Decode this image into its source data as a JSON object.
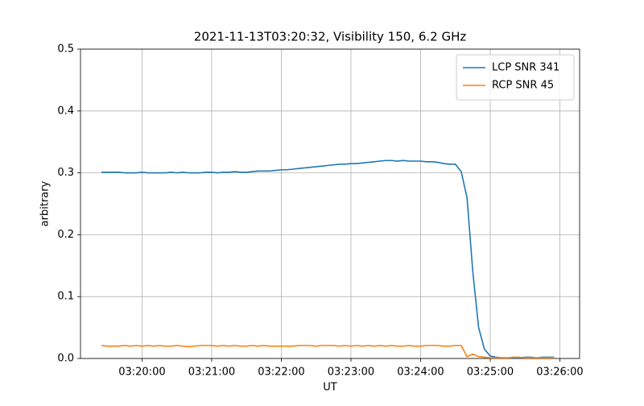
{
  "chart_data": {
    "type": "line",
    "title": "2021-11-13T03:20:32, Visibility 150, 6.2 GHz",
    "xlabel": "UT",
    "ylabel": "arbitrary",
    "x": [
      "03:19:25",
      "03:19:30",
      "03:19:35",
      "03:19:40",
      "03:19:45",
      "03:19:50",
      "03:19:55",
      "03:20:00",
      "03:20:05",
      "03:20:10",
      "03:20:15",
      "03:20:20",
      "03:20:25",
      "03:20:30",
      "03:20:35",
      "03:20:40",
      "03:20:45",
      "03:20:50",
      "03:20:55",
      "03:21:00",
      "03:21:05",
      "03:21:10",
      "03:21:15",
      "03:21:20",
      "03:21:25",
      "03:21:30",
      "03:21:35",
      "03:21:40",
      "03:21:45",
      "03:21:50",
      "03:21:55",
      "03:22:00",
      "03:22:05",
      "03:22:10",
      "03:22:15",
      "03:22:20",
      "03:22:25",
      "03:22:30",
      "03:22:35",
      "03:22:40",
      "03:22:45",
      "03:22:50",
      "03:22:55",
      "03:23:00",
      "03:23:05",
      "03:23:10",
      "03:23:15",
      "03:23:20",
      "03:23:25",
      "03:23:30",
      "03:23:35",
      "03:23:40",
      "03:23:45",
      "03:23:50",
      "03:23:55",
      "03:24:00",
      "03:24:05",
      "03:24:10",
      "03:24:15",
      "03:24:20",
      "03:24:25",
      "03:24:30",
      "03:24:35",
      "03:24:40",
      "03:24:45",
      "03:24:50",
      "03:24:55",
      "03:25:00",
      "03:25:05",
      "03:25:10",
      "03:25:15",
      "03:25:20",
      "03:25:25",
      "03:25:30",
      "03:25:35",
      "03:25:40",
      "03:25:45",
      "03:25:50",
      "03:25:55"
    ],
    "series": [
      {
        "name": "LCP SNR 341",
        "color": "#1f77b4",
        "values": [
          0.301,
          0.301,
          0.301,
          0.301,
          0.3,
          0.3,
          0.3,
          0.301,
          0.3,
          0.3,
          0.3,
          0.3,
          0.301,
          0.3,
          0.301,
          0.3,
          0.3,
          0.3,
          0.301,
          0.301,
          0.3,
          0.301,
          0.301,
          0.302,
          0.301,
          0.301,
          0.302,
          0.303,
          0.303,
          0.303,
          0.304,
          0.305,
          0.305,
          0.306,
          0.307,
          0.308,
          0.309,
          0.31,
          0.311,
          0.312,
          0.313,
          0.314,
          0.314,
          0.315,
          0.315,
          0.316,
          0.317,
          0.318,
          0.319,
          0.32,
          0.32,
          0.319,
          0.32,
          0.319,
          0.319,
          0.319,
          0.318,
          0.318,
          0.317,
          0.315,
          0.314,
          0.314,
          0.302,
          0.26,
          0.14,
          0.05,
          0.015,
          0.004,
          0.002,
          0.001,
          0.001,
          0.001,
          0.001,
          0.002,
          0.002,
          0.001,
          0.002,
          0.002,
          0.002
        ]
      },
      {
        "name": "RCP SNR 45",
        "color": "#ff7f0e",
        "values": [
          0.021,
          0.02,
          0.02,
          0.02,
          0.021,
          0.02,
          0.021,
          0.02,
          0.021,
          0.02,
          0.021,
          0.02,
          0.02,
          0.021,
          0.02,
          0.019,
          0.02,
          0.021,
          0.021,
          0.021,
          0.02,
          0.021,
          0.02,
          0.021,
          0.02,
          0.02,
          0.021,
          0.02,
          0.021,
          0.02,
          0.02,
          0.02,
          0.02,
          0.02,
          0.021,
          0.021,
          0.021,
          0.02,
          0.021,
          0.021,
          0.021,
          0.02,
          0.021,
          0.02,
          0.021,
          0.02,
          0.021,
          0.02,
          0.021,
          0.02,
          0.021,
          0.02,
          0.02,
          0.021,
          0.02,
          0.02,
          0.021,
          0.021,
          0.021,
          0.02,
          0.02,
          0.021,
          0.021,
          0.003,
          0.007,
          0.003,
          0.002,
          0.001,
          0.001,
          0.001,
          0.001,
          0.002,
          0.002,
          0.001,
          0.001,
          0.001,
          0.001,
          0.001,
          0.001
        ]
      }
    ],
    "xlim": [
      "03:19:07",
      "03:26:17"
    ],
    "xticks": [
      "03:20:00",
      "03:21:00",
      "03:22:00",
      "03:23:00",
      "03:24:00",
      "03:25:00",
      "03:26:00"
    ],
    "ylim": [
      0,
      0.5
    ],
    "yticks": [
      {
        "value": 0,
        "label": "0.0"
      },
      0.1,
      0.2,
      0.3,
      0.4,
      0.5
    ],
    "grid": true,
    "legend": "upper-right"
  }
}
